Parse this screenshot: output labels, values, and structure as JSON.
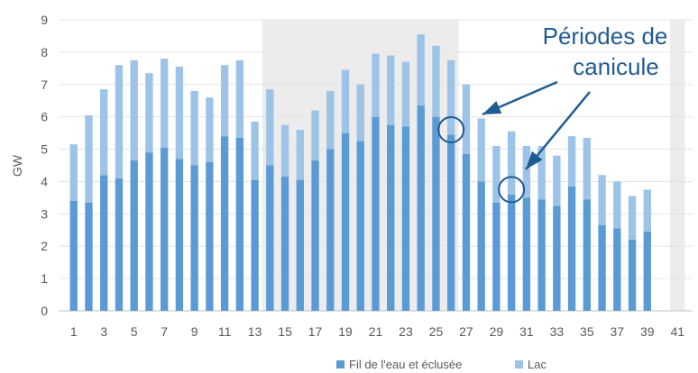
{
  "chart_data": {
    "type": "bar",
    "stacked": true,
    "ylabel": "GW",
    "ylim": [
      0,
      9
    ],
    "yticks": [
      "0",
      "1",
      "2",
      "3",
      "4",
      "5",
      "6",
      "7",
      "8",
      "9"
    ],
    "xticks": [
      "1",
      "3",
      "5",
      "7",
      "9",
      "11",
      "13",
      "15",
      "17",
      "19",
      "21",
      "23",
      "25",
      "27",
      "29",
      "31",
      "33",
      "35",
      "37",
      "39",
      "41"
    ],
    "categories": [
      1,
      2,
      3,
      4,
      5,
      6,
      7,
      8,
      9,
      10,
      11,
      12,
      13,
      14,
      15,
      16,
      17,
      18,
      19,
      20,
      21,
      22,
      23,
      24,
      25,
      26,
      27,
      28,
      29,
      30,
      31,
      32,
      33,
      34,
      35,
      36,
      37,
      38,
      39
    ],
    "series": [
      {
        "name": "Fil de l'eau et éclusée",
        "color": "#5b9bd5",
        "values": [
          3.4,
          3.35,
          4.2,
          4.1,
          4.65,
          4.9,
          5.05,
          4.7,
          4.5,
          4.6,
          5.4,
          5.35,
          4.05,
          4.5,
          4.15,
          4.05,
          4.65,
          5.0,
          5.5,
          5.25,
          6.0,
          5.75,
          5.7,
          6.35,
          6.0,
          5.45,
          4.85,
          4.0,
          3.35,
          3.6,
          3.5,
          3.45,
          3.25,
          3.85,
          3.45,
          2.65,
          2.55,
          2.2,
          2.45
        ]
      },
      {
        "name": "Lac",
        "color": "#9dc3e6",
        "values": [
          1.75,
          2.7,
          2.65,
          3.5,
          3.1,
          2.45,
          2.75,
          2.85,
          2.3,
          2.0,
          2.2,
          2.4,
          1.8,
          2.35,
          1.6,
          1.55,
          1.55,
          1.8,
          1.95,
          1.75,
          1.95,
          2.15,
          2.0,
          2.2,
          2.2,
          2.3,
          2.15,
          1.95,
          1.75,
          1.95,
          1.6,
          1.65,
          1.55,
          1.55,
          1.9,
          1.55,
          1.45,
          1.35,
          1.3
        ]
      }
    ],
    "shaded_ranges": [
      [
        14,
        26
      ],
      [
        41,
        41
      ]
    ],
    "annotation": {
      "text_line1": "Périodes de",
      "text_line2": "canicule",
      "color": "#1f5b93",
      "highlight_points": [
        26,
        30
      ]
    },
    "legend": {
      "placement": "bottom-center",
      "grid": true
    }
  }
}
